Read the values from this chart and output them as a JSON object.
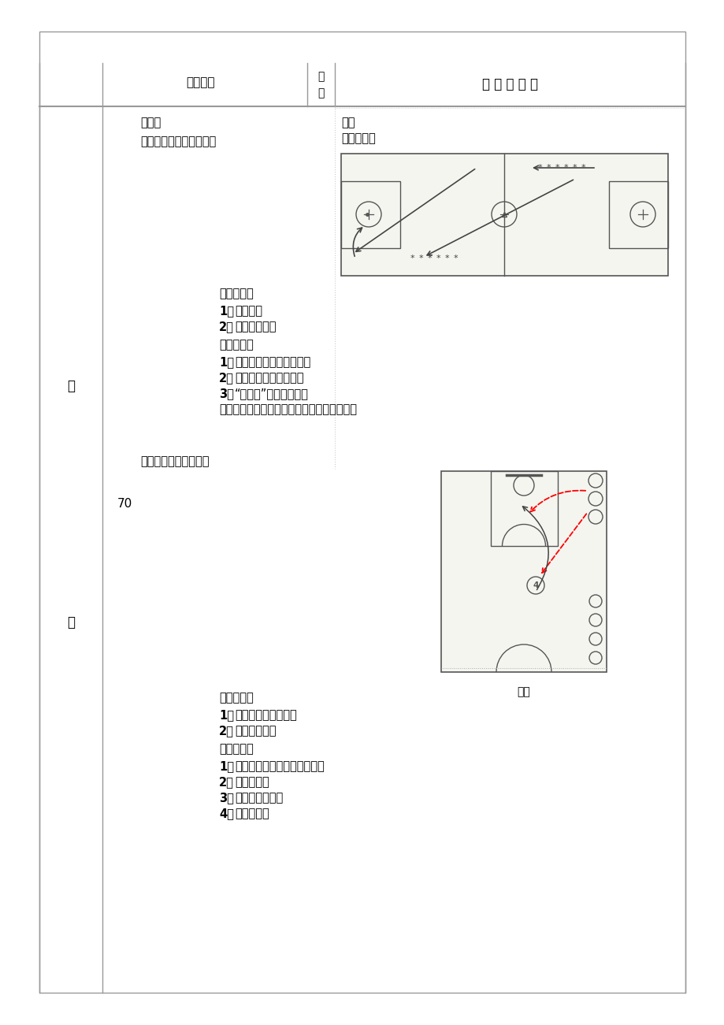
{
  "bg_color": "#ffffff",
  "header_col1": "课的内容",
  "header_col2": "次数",
  "header_col3": "组 织 与 教 法",
  "left_margin_top": "基",
  "left_margin_bottom": "本",
  "number_70": "70",
  "section1_title": "篮球：",
  "section1_sub": "一、行进间单手低手上篮",
  "section1_right_title": "篮球",
  "section1_right_org": "一、组织：",
  "section1_method_title": "二、教法：",
  "section1_method_items": [
    "1、分组练习",
    "2、教师指导更正"
  ],
  "section1_req_title": "三、要求：",
  "section1_req_items": [
    "1、控制好球，速度不要过快",
    "2、拿球，投篮要连贯协调",
    "3、“伸翻拨”动作不要走形",
    "低手投篮用手指轻拨球，方向向上一、组织："
  ],
  "section2_title": "二、传接运投综合练习",
  "section2_method_title": "二、教法：",
  "section2_method_items": [
    "1、教师示范后半部讲解",
    "2、语言指导更正"
  ],
  "section2_req_title": "三、要求：",
  "section2_req_items": [
    "1、传球后等队友接到球后再启动",
    "2、先做假动作",
    "3、接球后运球上篮",
    "4、队友抢篮板"
  ],
  "fig2_label": "图二"
}
